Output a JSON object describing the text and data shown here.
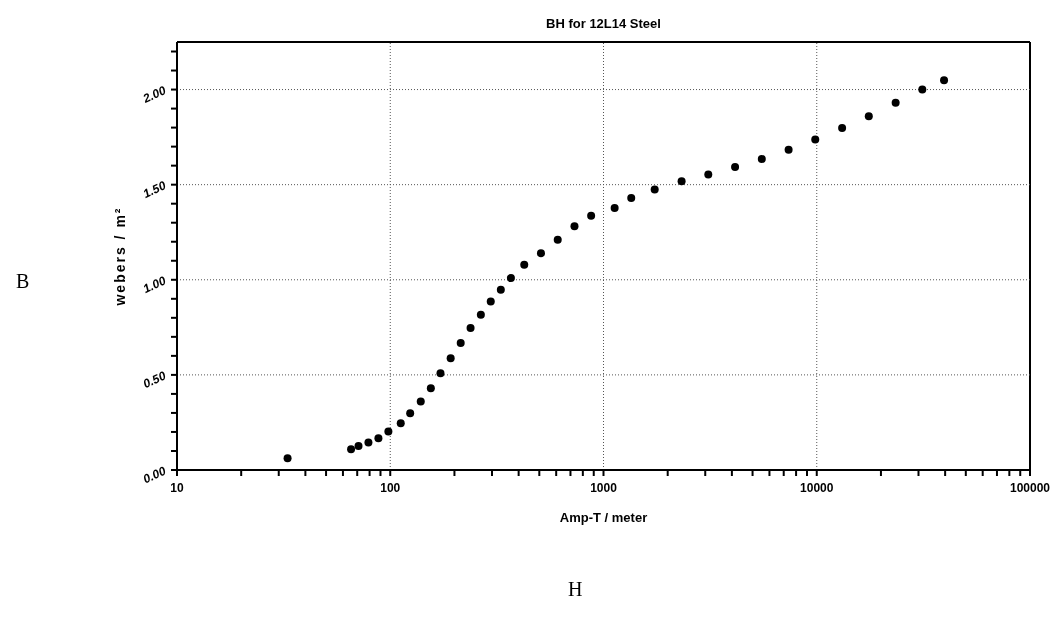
{
  "chart_data": {
    "type": "scatter",
    "title": "BH for 12L14 Steel",
    "xlabel": "Amp-T / meter",
    "ylabel": "webers / m²",
    "annotations": [
      "B",
      "H"
    ],
    "x": [
      33,
      65.5,
      71,
      79,
      88,
      98,
      112,
      124,
      139,
      155,
      172,
      192,
      214,
      238,
      266,
      296,
      330,
      368,
      425,
      509,
      610,
      731,
      875,
      1128,
      1349,
      1738,
      2324,
      3100,
      4140,
      5524,
      7380,
      9840,
      13150,
      17540,
      23440,
      31260,
      39530
    ],
    "series": [
      {
        "color": "#000000",
        "values": [
          0.062,
          0.109,
          0.126,
          0.144,
          0.167,
          0.202,
          0.246,
          0.298,
          0.36,
          0.43,
          0.509,
          0.588,
          0.667,
          0.746,
          0.816,
          0.886,
          0.947,
          1.009,
          1.079,
          1.14,
          1.211,
          1.281,
          1.337,
          1.377,
          1.43,
          1.474,
          1.518,
          1.553,
          1.593,
          1.635,
          1.684,
          1.737,
          1.798,
          1.86,
          1.93,
          2.0,
          2.049
        ]
      }
    ],
    "marker": "circle",
    "log": "x",
    "grid": true,
    "xlim": [
      10,
      100000
    ],
    "xticks": [
      10,
      {
        "value": 20,
        "label": null
      },
      {
        "value": 30,
        "label": null
      },
      {
        "value": 40,
        "label": null
      },
      {
        "value": 50,
        "label": null
      },
      {
        "value": 60,
        "label": null
      },
      {
        "value": 70,
        "label": null
      },
      {
        "value": 80,
        "label": null
      },
      {
        "value": 90,
        "label": null
      },
      100,
      {
        "value": 200,
        "label": null
      },
      {
        "value": 300,
        "label": null
      },
      {
        "value": 400,
        "label": null
      },
      {
        "value": 500,
        "label": null
      },
      {
        "value": 600,
        "label": null
      },
      {
        "value": 700,
        "label": null
      },
      {
        "value": 800,
        "label": null
      },
      {
        "value": 900,
        "label": null
      },
      1000,
      {
        "value": 2000,
        "label": null
      },
      {
        "value": 3000,
        "label": null
      },
      {
        "value": 4000,
        "label": null
      },
      {
        "value": 5000,
        "label": null
      },
      {
        "value": 6000,
        "label": null
      },
      {
        "value": 7000,
        "label": null
      },
      {
        "value": 8000,
        "label": null
      },
      {
        "value": 9000,
        "label": null
      },
      10000,
      {
        "value": 20000,
        "label": null
      },
      {
        "value": 30000,
        "label": null
      },
      {
        "value": 40000,
        "label": null
      },
      {
        "value": 50000,
        "label": null
      },
      {
        "value": 60000,
        "label": null
      },
      {
        "value": 70000,
        "label": null
      },
      {
        "value": 80000,
        "label": null
      },
      {
        "value": 90000,
        "label": null
      },
      100000
    ],
    "ylim": [
      0,
      2.25
    ],
    "yticks": [
      {
        "value": 0,
        "label": "0.00"
      },
      {
        "value": 0.1,
        "label": null
      },
      {
        "value": 0.2,
        "label": null
      },
      {
        "value": 0.3,
        "label": null
      },
      {
        "value": 0.4,
        "label": null
      },
      {
        "value": 0.5,
        "label": "0.50"
      },
      {
        "value": 0.6,
        "label": null
      },
      {
        "value": 0.7,
        "label": null
      },
      {
        "value": 0.8,
        "label": null
      },
      {
        "value": 0.9,
        "label": null
      },
      {
        "value": 1,
        "label": "1.00"
      },
      {
        "value": 1.1,
        "label": null
      },
      {
        "value": 1.2,
        "label": null
      },
      {
        "value": 1.3,
        "label": null
      },
      {
        "value": 1.4,
        "label": null
      },
      {
        "value": 1.5,
        "label": "1.50"
      },
      {
        "value": 1.6,
        "label": null
      },
      {
        "value": 1.7,
        "label": null
      },
      {
        "value": 1.8,
        "label": null
      },
      {
        "value": 1.9,
        "label": null
      },
      {
        "value": 2,
        "label": "2.00"
      },
      {
        "value": 2.1,
        "label": null
      },
      {
        "value": 2.2,
        "label": null
      }
    ]
  }
}
